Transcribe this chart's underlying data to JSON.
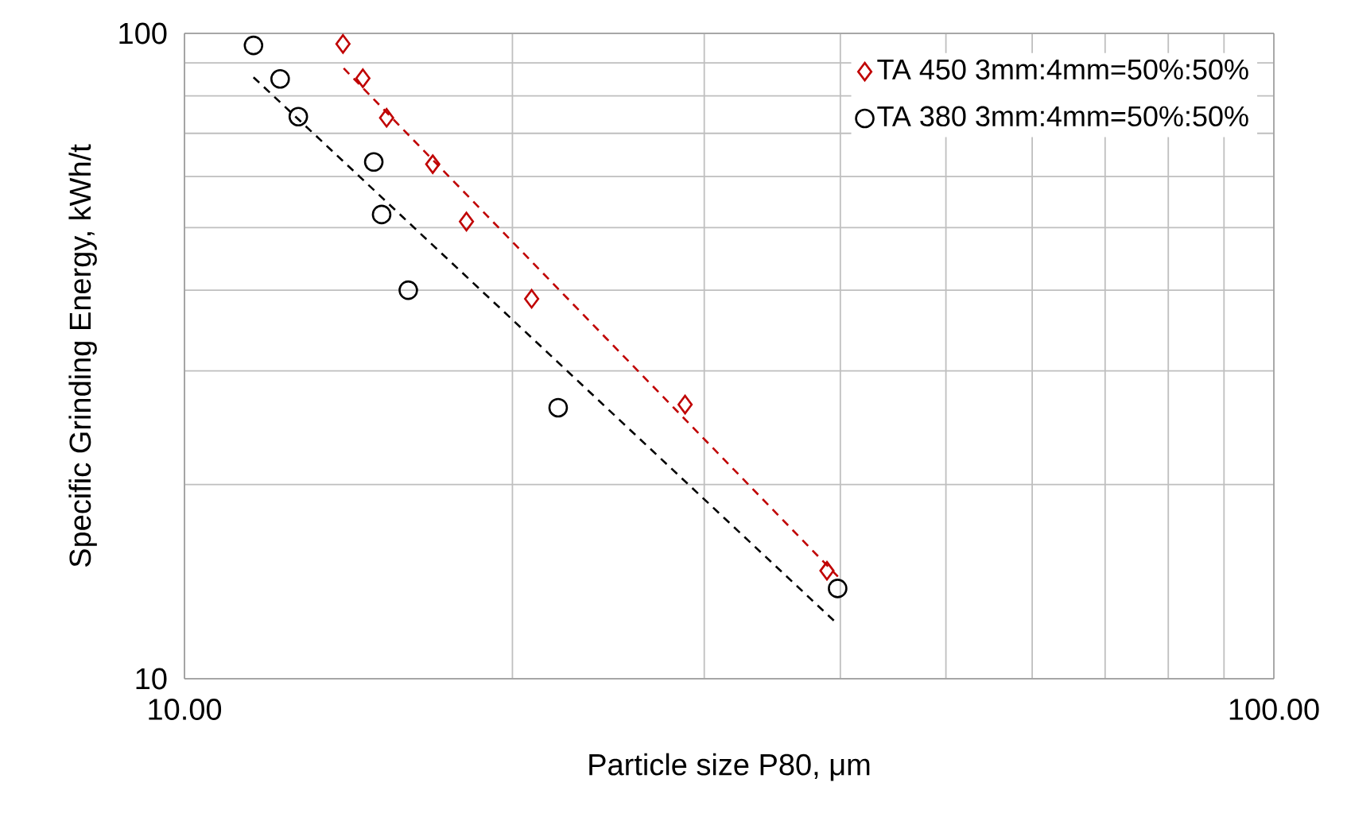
{
  "chart_data": {
    "type": "scatter",
    "xlabel": "Particle size P80, μm",
    "ylabel": "Specific Grinding Energy, kWh/t",
    "log": "xy",
    "grid": true,
    "legend": "top right",
    "xlim": [
      10,
      100
    ],
    "ylim": [
      10,
      100
    ],
    "xticks": [
      {
        "value": 10,
        "label": "10.00"
      },
      {
        "value": 100,
        "label": "100.00"
      }
    ],
    "yticks": [
      10,
      100
    ],
    "series": [
      {
        "name": "TA 450 3mm:4mm=50%:50%",
        "color": "#c00000",
        "marker": "diamond",
        "x": [
          13.98,
          14.58,
          15.33,
          16.9,
          18.15,
          20.83,
          28.81,
          38.89
        ],
        "values": [
          96.3,
          85.2,
          74.0,
          62.7,
          51.1,
          38.8,
          26.6,
          14.7
        ]
      },
      {
        "name": "TA 380 3mm:4mm=50%:50%",
        "color": "#000000",
        "marker": "circle",
        "x": [
          11.57,
          12.24,
          12.72,
          14.92,
          15.17,
          16.05,
          22.03,
          39.78
        ],
        "values": [
          95.8,
          85.0,
          74.3,
          63.2,
          52.4,
          40.0,
          26.3,
          13.8
        ]
      },
      {
        "type": "line",
        "color": "#c00000",
        "line_style": "dashed",
        "marker": "none",
        "x": [
          14.0,
          39.8
        ],
        "values": [
          88.3,
          14.4
        ]
      },
      {
        "type": "line",
        "color": "#000000",
        "line_style": "dashed",
        "marker": "none",
        "x": [
          11.57,
          39.78
        ],
        "values": [
          85.5,
          12.15
        ]
      }
    ]
  }
}
